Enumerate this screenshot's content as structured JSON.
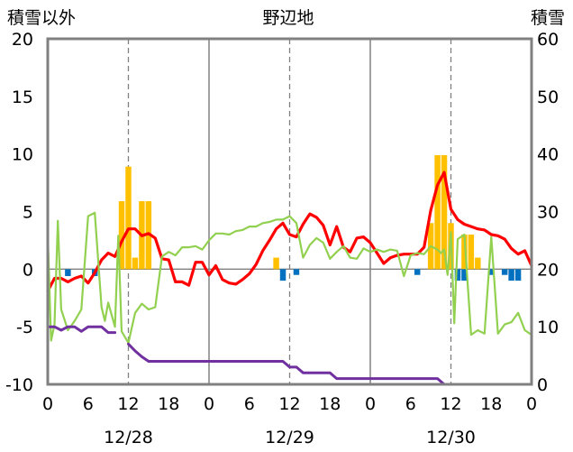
{
  "chart_data": {
    "type": "bar+line",
    "title": "野辺地",
    "y_left_label": "積雪以外",
    "y_right_label": "積雪",
    "y_left_range": [
      -10,
      20
    ],
    "y_right_range": [
      0,
      60
    ],
    "y_left_ticks": [
      "-10",
      "-5",
      "0",
      "5",
      "10",
      "15",
      "20"
    ],
    "y_right_ticks": [
      "0",
      "10",
      "20",
      "30",
      "40",
      "50",
      "60"
    ],
    "x_range_hours": [
      0,
      72
    ],
    "x_tick_labels": [
      "0",
      "6",
      "12",
      "18",
      "0",
      "6",
      "12",
      "18",
      "0",
      "6",
      "12",
      "18",
      "0"
    ],
    "date_labels": [
      {
        "text": "12/28",
        "hour": 12
      },
      {
        "text": "12/29",
        "hour": 36
      },
      {
        "text": "12/30",
        "hour": 60
      }
    ],
    "colors": {
      "temperature": "#ff0000",
      "wind": "#92d050",
      "snow_depth": "#7030a0",
      "precip": "#ffc000",
      "snowfall_neg": "#0070c0",
      "frame": "#808080",
      "grid": "#808080"
    },
    "series": [
      {
        "key": "temperature",
        "values": [
          [
            0,
            -1.9
          ],
          [
            1,
            -0.8
          ],
          [
            2,
            -0.8
          ],
          [
            3,
            -1.1
          ],
          [
            4,
            -0.8
          ],
          [
            5,
            -0.6
          ],
          [
            6,
            -1.2
          ],
          [
            7,
            -0.3
          ],
          [
            8,
            0.8
          ],
          [
            9,
            1.4
          ],
          [
            10,
            1.1
          ],
          [
            11,
            2.4
          ],
          [
            12,
            3.5
          ],
          [
            13,
            3.5
          ],
          [
            14,
            2.9
          ],
          [
            15,
            3.1
          ],
          [
            16,
            2.7
          ],
          [
            17,
            0.9
          ],
          [
            18,
            0.8
          ],
          [
            19,
            -1.1
          ],
          [
            20,
            -1.1
          ],
          [
            21,
            -1.4
          ],
          [
            22,
            0.6
          ],
          [
            23,
            0.6
          ],
          [
            24,
            -0.5
          ],
          [
            25,
            0.3
          ],
          [
            26,
            -0.9
          ],
          [
            27,
            -1.2
          ],
          [
            28,
            -1.3
          ],
          [
            29,
            -0.9
          ],
          [
            30,
            -0.4
          ],
          [
            31,
            0.4
          ],
          [
            32,
            1.6
          ],
          [
            33,
            2.5
          ],
          [
            34,
            3.5
          ],
          [
            35,
            4.0
          ],
          [
            36,
            3.0
          ],
          [
            37,
            2.8
          ],
          [
            38,
            3.9
          ],
          [
            39,
            4.8
          ],
          [
            40,
            4.5
          ],
          [
            41,
            3.8
          ],
          [
            42,
            2.1
          ],
          [
            43,
            3.7
          ],
          [
            44,
            1.9
          ],
          [
            45,
            1.5
          ],
          [
            46,
            2.7
          ],
          [
            47,
            2.8
          ],
          [
            48,
            2.3
          ],
          [
            49,
            1.4
          ],
          [
            50,
            0.5
          ],
          [
            51,
            1.0
          ],
          [
            52,
            1.2
          ],
          [
            53,
            1.3
          ],
          [
            54,
            1.3
          ],
          [
            55,
            1.3
          ],
          [
            56,
            1.9
          ],
          [
            57,
            5.1
          ],
          [
            58,
            7.3
          ],
          [
            59,
            8.4
          ],
          [
            60,
            5.2
          ],
          [
            61,
            4.3
          ],
          [
            62,
            3.9
          ],
          [
            63,
            3.7
          ],
          [
            64,
            3.5
          ],
          [
            65,
            3.4
          ],
          [
            66,
            3.0
          ],
          [
            67,
            2.9
          ],
          [
            68,
            2.6
          ],
          [
            69,
            1.8
          ],
          [
            70,
            1.3
          ],
          [
            71,
            1.6
          ],
          [
            72,
            0.3
          ]
        ]
      },
      {
        "key": "wind",
        "values": [
          [
            0,
            3.1
          ],
          [
            0.5,
            -6.2
          ],
          [
            1,
            -4.8
          ],
          [
            1.5,
            4.2
          ],
          [
            2,
            -3.5
          ],
          [
            3,
            -5.3
          ],
          [
            4,
            -4.5
          ],
          [
            5,
            -3.5
          ],
          [
            6,
            4.6
          ],
          [
            7,
            4.9
          ],
          [
            8,
            -3.3
          ],
          [
            8.5,
            -4.5
          ],
          [
            9,
            -2.9
          ],
          [
            10,
            -5.0
          ],
          [
            10.5,
            2.9
          ],
          [
            11,
            -5.4
          ],
          [
            12,
            -6.4
          ],
          [
            13,
            -3.8
          ],
          [
            14,
            -3.0
          ],
          [
            15,
            -3.5
          ],
          [
            16,
            -3.3
          ],
          [
            17,
            1.1
          ],
          [
            18,
            1.5
          ],
          [
            19,
            1.2
          ],
          [
            20,
            1.9
          ],
          [
            21,
            1.9
          ],
          [
            22,
            2.0
          ],
          [
            23,
            1.7
          ],
          [
            24,
            2.5
          ],
          [
            25,
            3.1
          ],
          [
            26,
            3.1
          ],
          [
            27,
            3.0
          ],
          [
            28,
            3.3
          ],
          [
            29,
            3.4
          ],
          [
            30,
            3.7
          ],
          [
            31,
            3.7
          ],
          [
            32,
            4.0
          ],
          [
            33,
            4.1
          ],
          [
            34,
            4.3
          ],
          [
            35,
            4.3
          ],
          [
            36,
            4.6
          ],
          [
            36.5,
            4.3
          ],
          [
            37,
            4.0
          ],
          [
            38,
            1.0
          ],
          [
            39,
            2.1
          ],
          [
            40,
            2.7
          ],
          [
            41,
            2.3
          ],
          [
            42,
            0.9
          ],
          [
            43,
            1.5
          ],
          [
            44,
            2.0
          ],
          [
            45,
            1.0
          ],
          [
            46,
            0.9
          ],
          [
            47,
            1.8
          ],
          [
            48,
            1.5
          ],
          [
            49,
            1.7
          ],
          [
            50,
            1.5
          ],
          [
            51,
            1.7
          ],
          [
            52,
            1.6
          ],
          [
            53,
            -0.6
          ],
          [
            54,
            1.2
          ],
          [
            55,
            1.4
          ],
          [
            56,
            1.3
          ],
          [
            57,
            2.0
          ],
          [
            58,
            1.7
          ],
          [
            58.5,
            1.4
          ],
          [
            59,
            1.7
          ],
          [
            59.5,
            -0.5
          ],
          [
            60,
            3.2
          ],
          [
            60.5,
            -4.7
          ],
          [
            61,
            2.6
          ],
          [
            62,
            3.0
          ],
          [
            63,
            -5.7
          ],
          [
            64,
            -5.3
          ],
          [
            65,
            -5.6
          ],
          [
            66,
            2.8
          ],
          [
            67,
            -5.6
          ],
          [
            68,
            -4.8
          ],
          [
            69,
            -4.6
          ],
          [
            70,
            -3.8
          ],
          [
            71,
            -5.3
          ],
          [
            72,
            -5.7
          ]
        ]
      },
      {
        "key": "snow_depth",
        "values": [
          [
            0,
            -5.0
          ],
          [
            1,
            -5.0
          ],
          [
            2,
            -5.3
          ],
          [
            3,
            -5.0
          ],
          [
            4,
            -5.0
          ],
          [
            5,
            -5.4
          ],
          [
            6,
            -5.0
          ],
          [
            7,
            -5.0
          ],
          [
            8,
            -5.0
          ],
          [
            9,
            -5.5
          ],
          [
            10,
            -5.5
          ],
          [
            null,
            null
          ],
          [
            12,
            -6.5
          ],
          [
            13,
            -7.1
          ],
          [
            14,
            -7.6
          ],
          [
            15,
            -8.0
          ],
          [
            16,
            -8.0
          ],
          [
            17,
            -8.0
          ],
          [
            18,
            -8.0
          ],
          [
            19,
            -8.0
          ],
          [
            20,
            -8.0
          ],
          [
            21,
            -8.0
          ],
          [
            22,
            -8.0
          ],
          [
            23,
            -8.0
          ],
          [
            24,
            -8.0
          ],
          [
            25,
            -8.0
          ],
          [
            26,
            -8.0
          ],
          [
            27,
            -8.0
          ],
          [
            28,
            -8.0
          ],
          [
            29,
            -8.0
          ],
          [
            30,
            -8.0
          ],
          [
            31,
            -8.0
          ],
          [
            32,
            -8.0
          ],
          [
            33,
            -8.0
          ],
          [
            34,
            -8.0
          ],
          [
            35,
            -8.0
          ],
          [
            36,
            -8.5
          ],
          [
            37,
            -8.5
          ],
          [
            38,
            -9.0
          ],
          [
            39,
            -9.0
          ],
          [
            40,
            -9.0
          ],
          [
            41,
            -9.0
          ],
          [
            42,
            -9.0
          ],
          [
            43,
            -9.5
          ],
          [
            44,
            -9.5
          ],
          [
            45,
            -9.5
          ],
          [
            46,
            -9.5
          ],
          [
            47,
            -9.5
          ],
          [
            48,
            -9.5
          ],
          [
            49,
            -9.5
          ],
          [
            50,
            -9.5
          ],
          [
            51,
            -9.5
          ],
          [
            52,
            -9.5
          ],
          [
            53,
            -9.5
          ],
          [
            54,
            -9.5
          ],
          [
            55,
            -9.5
          ],
          [
            56,
            -9.5
          ],
          [
            57,
            -9.5
          ],
          [
            58,
            -9.5
          ],
          [
            59,
            -10.0
          ],
          [
            60,
            -10.0
          ],
          [
            61,
            -10.0
          ],
          [
            62,
            -10.0
          ],
          [
            63,
            -10.0
          ],
          [
            64,
            -10.0
          ],
          [
            65,
            -10.0
          ],
          [
            66,
            -10.0
          ],
          [
            67,
            -10.0
          ],
          [
            68,
            -10.0
          ],
          [
            69,
            -10.0
          ],
          [
            70,
            -10.0
          ],
          [
            71,
            -10.0
          ],
          [
            72,
            -10.0
          ]
        ]
      }
    ],
    "bars_precip": [
      [
        11,
        5.9
      ],
      [
        12,
        8.9
      ],
      [
        13,
        1.0
      ],
      [
        14,
        5.9
      ],
      [
        15,
        5.9
      ],
      [
        34,
        1.0
      ],
      [
        57,
        4.0
      ],
      [
        58,
        9.9
      ],
      [
        59,
        9.9
      ],
      [
        60,
        4.0
      ],
      [
        62,
        3.0
      ],
      [
        63,
        3.0
      ],
      [
        64,
        1.0
      ]
    ],
    "bars_negative": [
      [
        3,
        -0.6
      ],
      [
        7,
        -0.6
      ],
      [
        35,
        -1.0
      ],
      [
        37,
        -0.5
      ],
      [
        55,
        -0.5
      ],
      [
        61,
        -1.0
      ],
      [
        62,
        -1.0
      ],
      [
        66,
        -0.5
      ],
      [
        68,
        -0.5
      ],
      [
        69,
        -1.0
      ],
      [
        70,
        -1.0
      ]
    ]
  }
}
